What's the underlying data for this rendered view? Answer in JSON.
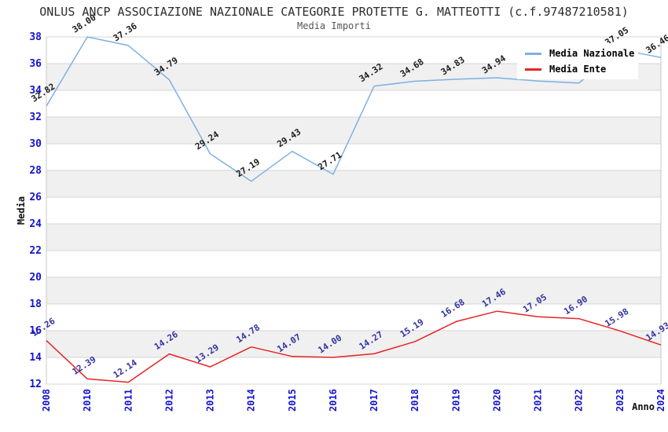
{
  "title": "ONLUS ANCP ASSOCIAZIONE NAZIONALE CATEGORIE PROTETTE G. MATTEOTTI (c.f.97487210581)",
  "subtitle": "Media Importi",
  "chart_data": {
    "type": "line",
    "title": "Media Importi",
    "xlabel": "Anno",
    "ylabel": "Media",
    "categories": [
      "2008",
      "2010",
      "2011",
      "2012",
      "2013",
      "2014",
      "2015",
      "2016",
      "2017",
      "2018",
      "2019",
      "2020",
      "2021",
      "2022",
      "2023",
      "2024"
    ],
    "series": [
      {
        "name": "Media Nazionale",
        "color": "#7db0e3",
        "label_color": "#1c1c1c",
        "values": [
          32.82,
          38.0,
          37.36,
          34.79,
          29.24,
          27.19,
          29.43,
          27.71,
          34.32,
          34.68,
          34.83,
          34.94,
          34.7,
          34.55,
          37.05,
          36.46
        ],
        "labels": [
          "32.82",
          "38.00",
          "37.36",
          "34.79",
          "29.24",
          "27.19",
          "29.43",
          "27.71",
          "34.32",
          "34.68",
          "34.83",
          "34.94",
          "",
          "",
          "37.05",
          "36.46"
        ]
      },
      {
        "name": "Media Ente",
        "color": "#e62424",
        "label_color": "#3333a0",
        "values": [
          15.26,
          12.39,
          12.14,
          14.26,
          13.29,
          14.78,
          14.07,
          14.0,
          14.27,
          15.19,
          16.68,
          17.46,
          17.05,
          16.9,
          15.98,
          14.93
        ],
        "labels": [
          "15.26",
          "12.39",
          "12.14",
          "14.26",
          "13.29",
          "14.78",
          "14.07",
          "14.00",
          "14.27",
          "15.19",
          "16.68",
          "17.46",
          "17.05",
          "16.90",
          "15.98",
          "14.93"
        ]
      }
    ],
    "ylim": [
      12,
      38
    ],
    "ytick_step": 2,
    "ytick_labels": [
      "12",
      "14",
      "16",
      "18",
      "20",
      "22",
      "24",
      "26",
      "28",
      "30",
      "32",
      "34",
      "36",
      "38"
    ],
    "band_colors": [
      "#ffffff",
      "#f0f0f0"
    ],
    "grid_color": "#d6d6d6",
    "border_color": "#c8c8c8",
    "tick_color": "#1414cc",
    "legend_position": "top-right",
    "grid": "horizontal-bands"
  }
}
